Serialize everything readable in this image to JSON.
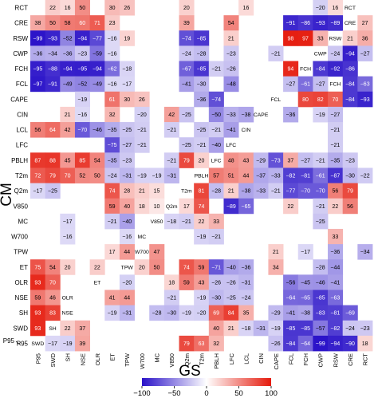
{
  "chart_data": {
    "type": "heatmap",
    "xlabel": "GS",
    "ylabel": "CM",
    "x": [
      "P95",
      "SWD",
      "SH",
      "NSE",
      "OLR",
      "ET",
      "TPW",
      "W700",
      "MC",
      "V850",
      "Q2m",
      "T2m",
      "PBLH",
      "LFC",
      "LCL",
      "CIN",
      "CAPE",
      "FCL",
      "FCH",
      "CWP",
      "RSW",
      "CRE",
      "RCT"
    ],
    "y": [
      "RCT",
      "CRE",
      "RSW",
      "CWP",
      "FCH",
      "FCL",
      "CAPE",
      "CIN",
      "LCL",
      "LFC",
      "PBLH",
      "T2m",
      "Q2m",
      "V850",
      "MC",
      "W700",
      "TPW",
      "ET",
      "OLR",
      "NSE",
      "SH",
      "SWD",
      "P95"
    ],
    "values": [
      [
        null,
        22,
        16,
        50,
        null,
        30,
        26,
        null,
        null,
        null,
        20,
        null,
        null,
        null,
        16,
        null,
        null,
        null,
        null,
        -20,
        16,
        "RCT",
        null
      ],
      [
        38,
        50,
        58,
        60,
        71,
        23,
        null,
        null,
        null,
        null,
        39,
        null,
        null,
        54,
        null,
        null,
        null,
        -91,
        -86,
        -93,
        -89,
        "CRE",
        27
      ],
      [
        -99,
        -93,
        -52,
        -94,
        -77,
        -16,
        19,
        null,
        null,
        null,
        -74,
        -85,
        null,
        21,
        null,
        null,
        null,
        98,
        97,
        33,
        "RSW",
        21,
        36
      ],
      [
        -36,
        -34,
        -36,
        -23,
        -59,
        -16,
        null,
        null,
        null,
        null,
        -24,
        -28,
        null,
        -23,
        null,
        null,
        -21,
        null,
        null,
        "CWP",
        -24,
        -94,
        -27
      ],
      [
        -95,
        -88,
        -94,
        -95,
        -94,
        -62,
        -18,
        null,
        null,
        null,
        -67,
        -85,
        -21,
        -26,
        null,
        null,
        null,
        94,
        "FCH",
        -84,
        -92,
        -86,
        null
      ],
      [
        -97,
        -91,
        -49,
        -52,
        -49,
        -16,
        -17,
        null,
        null,
        null,
        -41,
        -30,
        null,
        -48,
        null,
        null,
        null,
        -27,
        -61,
        -27,
        "FCH",
        -84,
        -63
      ],
      [
        null,
        null,
        null,
        -19,
        null,
        61,
        30,
        26,
        null,
        null,
        null,
        -36,
        -74,
        null,
        null,
        null,
        "FCL",
        null,
        80,
        82,
        70,
        -84,
        -93
      ],
      [
        null,
        null,
        21,
        -16,
        null,
        32,
        null,
        -20,
        null,
        42,
        -25,
        null,
        -50,
        -33,
        -38,
        "CAPE",
        null,
        -36,
        null,
        -19,
        -27,
        null,
        null
      ],
      [
        56,
        64,
        42,
        -70,
        -46,
        -35,
        -25,
        -21,
        null,
        -21,
        null,
        -25,
        -21,
        -41,
        "CIN",
        null,
        null,
        null,
        null,
        null,
        -21,
        null,
        null
      ],
      [
        null,
        null,
        null,
        null,
        null,
        -75,
        -27,
        -21,
        null,
        null,
        -25,
        -21,
        -40,
        "LFC",
        null,
        null,
        null,
        null,
        null,
        null,
        -21,
        null,
        null
      ],
      [
        87,
        88,
        45,
        85,
        54,
        -35,
        -23,
        null,
        null,
        -21,
        79,
        20,
        "LFC",
        48,
        43,
        -29,
        -73,
        37,
        -27,
        -21,
        -35,
        -23,
        null
      ],
      [
        72,
        79,
        70,
        52,
        50,
        -24,
        -31,
        -19,
        -19,
        -31,
        null,
        "PBLH",
        57,
        51,
        44,
        -37,
        -33,
        -82,
        -81,
        -61,
        -87,
        -30,
        -22
      ],
      [
        -17,
        -25,
        null,
        null,
        null,
        74,
        28,
        21,
        15,
        null,
        "T2m",
        81,
        -28,
        21,
        -38,
        -33,
        -21,
        -77,
        -70,
        -70,
        56,
        79,
        null
      ],
      [
        null,
        null,
        null,
        null,
        null,
        59,
        40,
        18,
        10,
        "Q2m",
        17,
        74,
        null,
        -89,
        -65,
        null,
        null,
        22,
        null,
        -21,
        22,
        56,
        null
      ],
      [
        null,
        null,
        -17,
        null,
        null,
        -21,
        -40,
        null,
        "V850",
        -18,
        -21,
        22,
        33,
        null,
        null,
        null,
        null,
        null,
        null,
        -25,
        null,
        null,
        null
      ],
      [
        null,
        null,
        -16,
        null,
        null,
        null,
        -16,
        "MC",
        null,
        null,
        null,
        -19,
        -21,
        null,
        null,
        null,
        null,
        null,
        null,
        null,
        33,
        null,
        null
      ],
      [
        null,
        null,
        null,
        null,
        null,
        17,
        44,
        "W700",
        47,
        null,
        null,
        null,
        null,
        null,
        null,
        null,
        21,
        null,
        -17,
        null,
        -36,
        null,
        -34
      ],
      [
        75,
        54,
        20,
        null,
        22,
        null,
        "TPW",
        20,
        50,
        null,
        74,
        59,
        -71,
        -40,
        -36,
        null,
        34,
        null,
        null,
        -28,
        -44,
        null,
        null
      ],
      [
        93,
        70,
        null,
        null,
        "ET",
        null,
        -20,
        null,
        null,
        18,
        59,
        43,
        -26,
        -26,
        -31,
        null,
        null,
        -56,
        -45,
        -46,
        -41,
        null,
        null
      ],
      [
        59,
        46,
        "OLR",
        null,
        null,
        41,
        44,
        null,
        null,
        -21,
        null,
        -19,
        -30,
        -25,
        -24,
        null,
        null,
        -64,
        -65,
        -85,
        -63,
        null,
        null
      ],
      [
        93,
        83,
        "NSE",
        null,
        null,
        -19,
        -31,
        null,
        -28,
        -30,
        -19,
        -20,
        69,
        84,
        35,
        null,
        -29,
        -41,
        -38,
        -83,
        -81,
        -69,
        null
      ],
      [
        93,
        "SH",
        22,
        37,
        null,
        null,
        null,
        null,
        null,
        null,
        null,
        null,
        40,
        21,
        -18,
        -31,
        -19,
        -85,
        -85,
        -57,
        -82,
        -24,
        -23
      ],
      [
        "SWD",
        -17,
        -19,
        39,
        null,
        null,
        null,
        null,
        null,
        null,
        79,
        63,
        32,
        null,
        null,
        null,
        -26,
        -84,
        -64,
        -99,
        -94,
        -90,
        18
      ]
    ],
    "vmin": -100,
    "vmax": 100,
    "colorbar_ticks": [
      -100,
      -50,
      0,
      50,
      100
    ],
    "annotation": "P95"
  },
  "colors": {
    "negative": "#2a12c8",
    "zero": "#ffffff",
    "positive": "#e51a0c",
    "text_dark": "#000000",
    "text_light": "#ffffff"
  }
}
